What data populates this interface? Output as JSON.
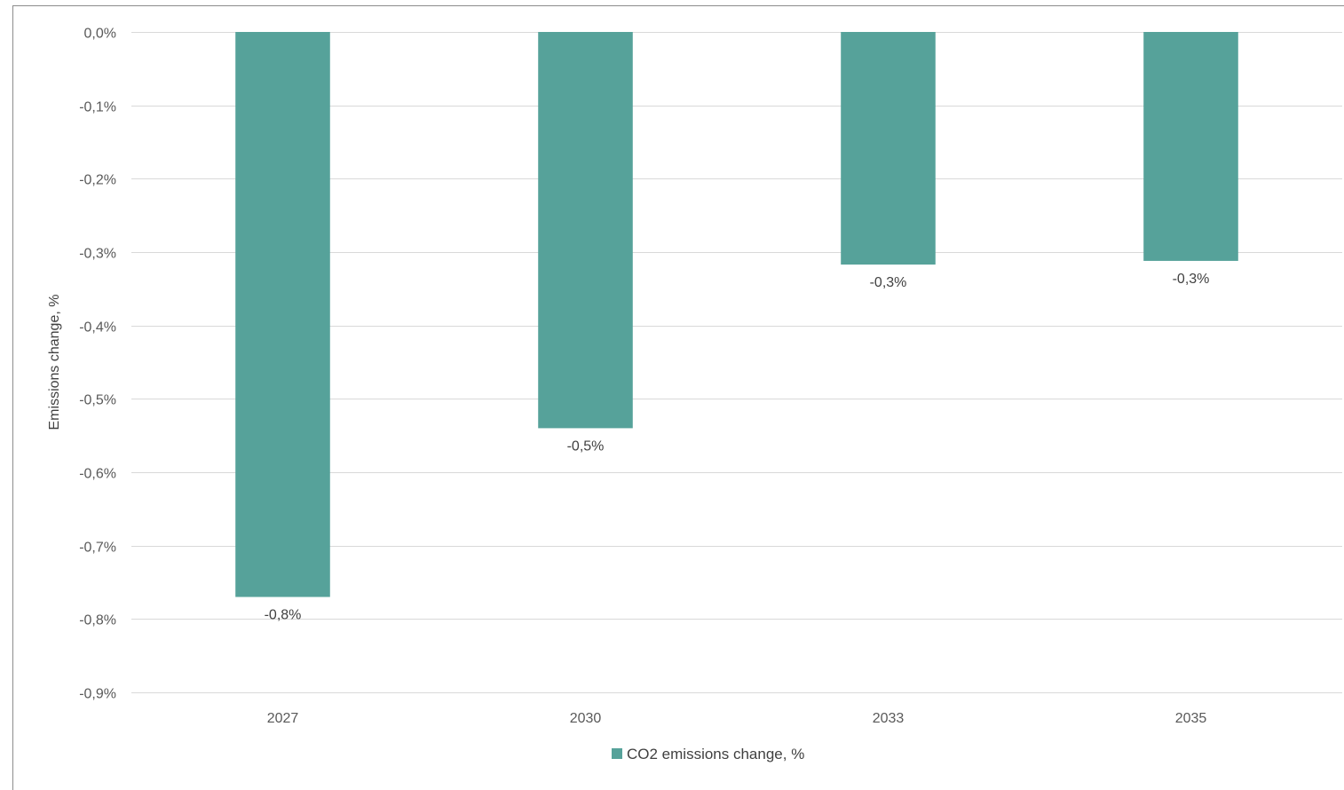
{
  "chart_data": {
    "type": "bar",
    "categories": [
      "2027",
      "2030",
      "2033",
      "2035"
    ],
    "series": [
      {
        "name": "CO2 emissions change, %",
        "values": [
          -0.77,
          -0.54,
          -0.317,
          -0.312
        ],
        "data_labels": [
          "-0,8%",
          "-0,5%",
          "-0,3%",
          "-0,3%"
        ],
        "color": "#56a29a"
      }
    ],
    "title": "",
    "xlabel": "",
    "ylabel": "Emissions change, %",
    "ylim": [
      -0.9,
      0.0
    ],
    "yticks": [
      {
        "value": 0.0,
        "label": "0,0%"
      },
      {
        "value": -0.1,
        "label": "-0,1%"
      },
      {
        "value": -0.2,
        "label": "-0,2%"
      },
      {
        "value": -0.3,
        "label": "-0,3%"
      },
      {
        "value": -0.4,
        "label": "-0,4%"
      },
      {
        "value": -0.5,
        "label": "-0,5%"
      },
      {
        "value": -0.6,
        "label": "-0,6%"
      },
      {
        "value": -0.7,
        "label": "-0,7%"
      },
      {
        "value": -0.8,
        "label": "-0,8%"
      },
      {
        "value": -0.9,
        "label": "-0,9%"
      }
    ],
    "grid": true,
    "legend_position": "bottom"
  }
}
